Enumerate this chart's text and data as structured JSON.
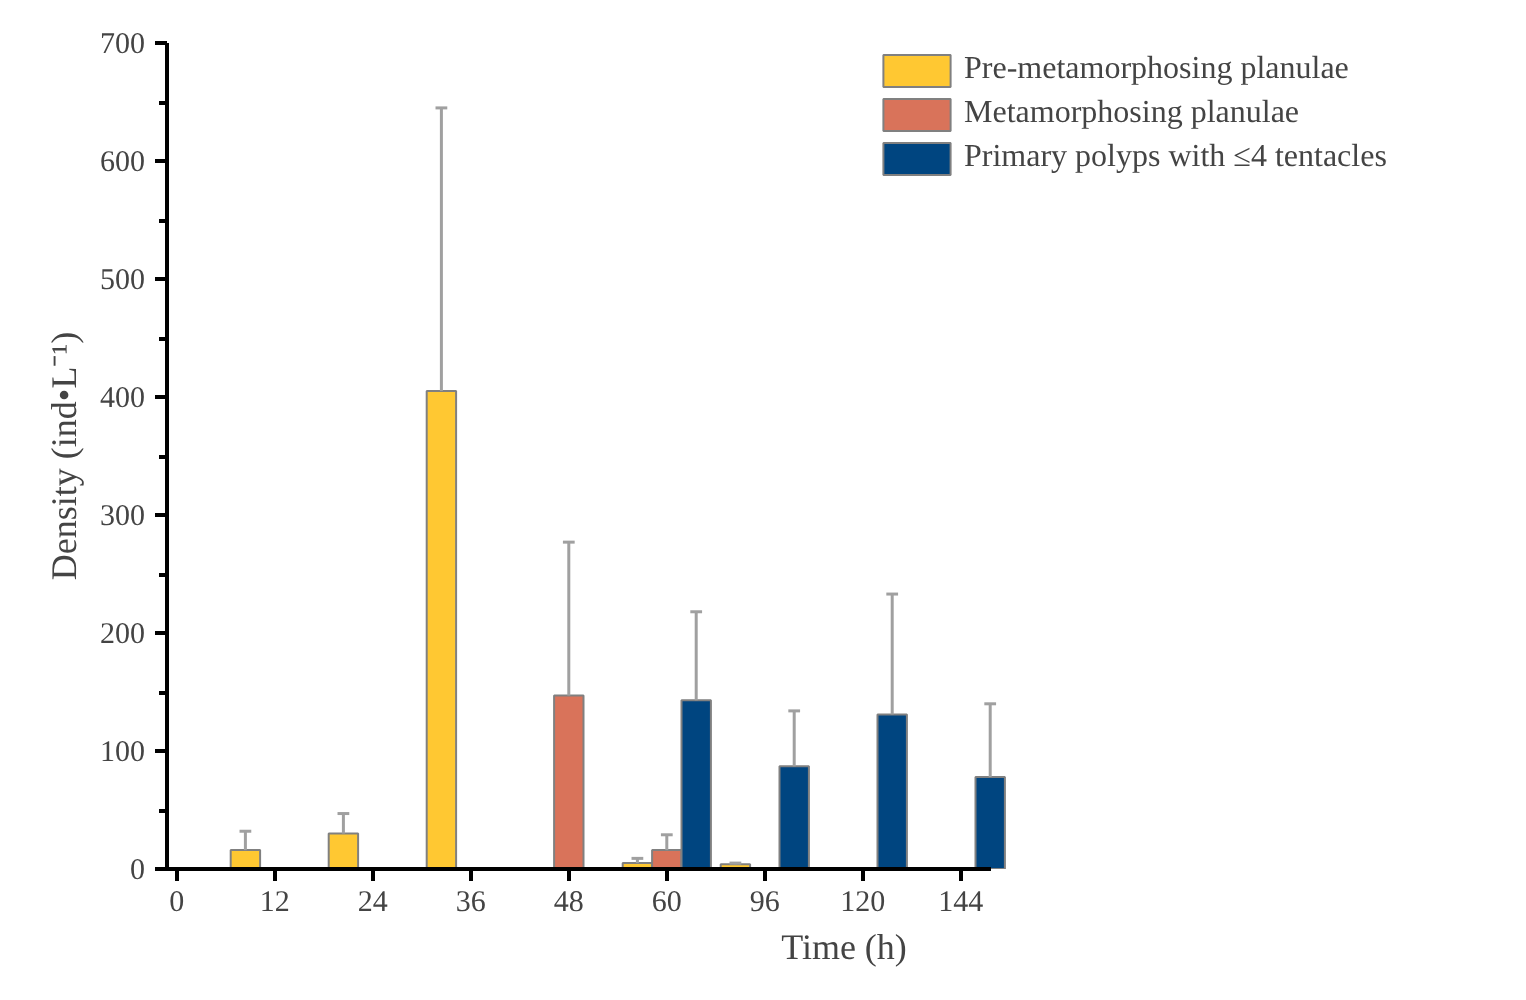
{
  "chart_data": {
    "type": "bar",
    "xlabel": "Time (h)",
    "ylabel": "Density (ind•L⁻¹)",
    "categories": [
      "0",
      "12",
      "24",
      "36",
      "48",
      "60",
      "96",
      "120",
      "144"
    ],
    "series": [
      {
        "name": "Pre-metamorphosing planulae",
        "color": "#ffc832",
        "values": [
          null,
          16,
          30,
          405,
          null,
          5,
          4,
          null,
          null
        ],
        "errors": [
          null,
          [
            16,
            32
          ],
          [
            30,
            47
          ],
          [
            405,
            645
          ],
          null,
          [
            5,
            9
          ],
          [
            4,
            5
          ],
          null,
          null
        ]
      },
      {
        "name": "Metamorphosing planulae",
        "color": "#d9735a",
        "values": [
          null,
          null,
          null,
          null,
          147,
          16,
          null,
          null,
          null
        ],
        "errors": [
          null,
          null,
          null,
          null,
          [
            147,
            277
          ],
          [
            16,
            29
          ],
          null,
          null,
          null
        ]
      },
      {
        "name": "Primary polyps with ≤4 tentacles",
        "color": "#004580",
        "values": [
          null,
          null,
          null,
          null,
          null,
          143,
          87,
          131,
          78
        ],
        "errors": [
          null,
          null,
          null,
          null,
          null,
          [
            143,
            218
          ],
          [
            87,
            134
          ],
          [
            131,
            233
          ],
          [
            78,
            140
          ]
        ]
      }
    ],
    "ylim": [
      0,
      700
    ],
    "yticks": [
      0,
      {
        "value": 50,
        "label": null
      },
      100,
      {
        "value": 150,
        "label": null
      },
      200,
      {
        "value": 250,
        "label": null
      },
      300,
      {
        "value": 350,
        "label": null
      },
      400,
      {
        "value": 450,
        "label": null
      },
      500,
      {
        "value": 550,
        "label": null
      },
      600,
      {
        "value": 650,
        "label": null
      },
      700
    ],
    "legend": "top right"
  }
}
